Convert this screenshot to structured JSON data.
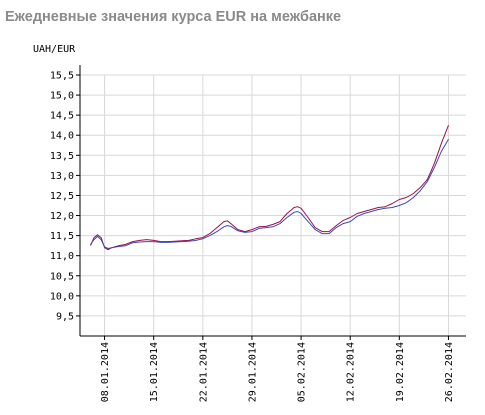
{
  "title": "Ежедневные значения курса EUR на межбанке",
  "chart_data": {
    "type": "line",
    "title": "Ежедневные значения курса EUR на межбанке",
    "ylabel": "UAH/EUR",
    "xlabel": "",
    "ylim": [
      9.0,
      15.5
    ],
    "yticks": [
      "9,5",
      "10,0",
      "10,5",
      "11,0",
      "11,5",
      "12,0",
      "12,5",
      "13,0",
      "13,5",
      "14,0",
      "14,5",
      "15,0",
      "15,5"
    ],
    "xticks": [
      {
        "label": "08.01.2014",
        "day": 8
      },
      {
        "label": "15.01.2014",
        "day": 15
      },
      {
        "label": "22.01.2014",
        "day": 22
      },
      {
        "label": "29.01.2014",
        "day": 29
      },
      {
        "label": "05.02.2014",
        "day": 36
      },
      {
        "label": "12.02.2014",
        "day": 43
      },
      {
        "label": "19.02.2014",
        "day": 50
      },
      {
        "label": "26.02.2014",
        "day": 57
      }
    ],
    "grid": true,
    "colors": {
      "series_1": "#9a1050",
      "series_2": "#3b49b0",
      "grid": "#d8d8d8"
    },
    "series": [
      {
        "points": [
          [
            6.0,
            11.25
          ],
          [
            6.5,
            11.45
          ],
          [
            7.0,
            11.52
          ],
          [
            7.5,
            11.45
          ],
          [
            8.0,
            11.2
          ],
          [
            8.5,
            11.15
          ],
          [
            9.0,
            11.2
          ],
          [
            10.0,
            11.25
          ],
          [
            11.0,
            11.28
          ],
          [
            12.0,
            11.35
          ],
          [
            13.0,
            11.38
          ],
          [
            14.0,
            11.4
          ],
          [
            15.0,
            11.38
          ],
          [
            16.0,
            11.35
          ],
          [
            17.0,
            11.35
          ],
          [
            18.0,
            11.36
          ],
          [
            19.0,
            11.37
          ],
          [
            20.0,
            11.38
          ],
          [
            21.0,
            11.42
          ],
          [
            22.0,
            11.45
          ],
          [
            23.0,
            11.55
          ],
          [
            24.0,
            11.7
          ],
          [
            25.0,
            11.85
          ],
          [
            25.5,
            11.87
          ],
          [
            26.0,
            11.8
          ],
          [
            27.0,
            11.65
          ],
          [
            28.0,
            11.6
          ],
          [
            29.0,
            11.65
          ],
          [
            30.0,
            11.72
          ],
          [
            31.0,
            11.73
          ],
          [
            32.0,
            11.78
          ],
          [
            33.0,
            11.85
          ],
          [
            34.0,
            12.05
          ],
          [
            35.0,
            12.2
          ],
          [
            35.5,
            12.22
          ],
          [
            36.0,
            12.18
          ],
          [
            37.0,
            11.95
          ],
          [
            38.0,
            11.7
          ],
          [
            39.0,
            11.6
          ],
          [
            40.0,
            11.6
          ],
          [
            41.0,
            11.75
          ],
          [
            42.0,
            11.88
          ],
          [
            43.0,
            11.95
          ],
          [
            44.0,
            12.05
          ],
          [
            45.0,
            12.1
          ],
          [
            46.0,
            12.15
          ],
          [
            47.0,
            12.2
          ],
          [
            48.0,
            12.22
          ],
          [
            49.0,
            12.3
          ],
          [
            50.0,
            12.4
          ],
          [
            51.0,
            12.45
          ],
          [
            52.0,
            12.55
          ],
          [
            53.0,
            12.7
          ],
          [
            54.0,
            12.9
          ],
          [
            55.0,
            13.3
          ],
          [
            56.0,
            13.8
          ],
          [
            57.0,
            14.25
          ]
        ]
      },
      {
        "points": [
          [
            6.0,
            11.28
          ],
          [
            6.5,
            11.4
          ],
          [
            7.0,
            11.48
          ],
          [
            7.5,
            11.4
          ],
          [
            8.0,
            11.22
          ],
          [
            8.5,
            11.18
          ],
          [
            9.0,
            11.2
          ],
          [
            10.0,
            11.23
          ],
          [
            11.0,
            11.25
          ],
          [
            12.0,
            11.32
          ],
          [
            13.0,
            11.34
          ],
          [
            14.0,
            11.35
          ],
          [
            15.0,
            11.35
          ],
          [
            16.0,
            11.33
          ],
          [
            17.0,
            11.33
          ],
          [
            18.0,
            11.34
          ],
          [
            19.0,
            11.35
          ],
          [
            20.0,
            11.36
          ],
          [
            21.0,
            11.38
          ],
          [
            22.0,
            11.42
          ],
          [
            23.0,
            11.5
          ],
          [
            24.0,
            11.6
          ],
          [
            25.0,
            11.72
          ],
          [
            25.5,
            11.75
          ],
          [
            26.0,
            11.73
          ],
          [
            27.0,
            11.62
          ],
          [
            28.0,
            11.58
          ],
          [
            29.0,
            11.6
          ],
          [
            30.0,
            11.68
          ],
          [
            31.0,
            11.7
          ],
          [
            32.0,
            11.72
          ],
          [
            33.0,
            11.8
          ],
          [
            34.0,
            11.95
          ],
          [
            35.0,
            12.08
          ],
          [
            35.5,
            12.1
          ],
          [
            36.0,
            12.05
          ],
          [
            37.0,
            11.85
          ],
          [
            38.0,
            11.65
          ],
          [
            39.0,
            11.55
          ],
          [
            40.0,
            11.55
          ],
          [
            41.0,
            11.7
          ],
          [
            42.0,
            11.8
          ],
          [
            43.0,
            11.85
          ],
          [
            44.0,
            11.98
          ],
          [
            45.0,
            12.05
          ],
          [
            46.0,
            12.1
          ],
          [
            47.0,
            12.15
          ],
          [
            48.0,
            12.18
          ],
          [
            49.0,
            12.2
          ],
          [
            50.0,
            12.25
          ],
          [
            51.0,
            12.32
          ],
          [
            52.0,
            12.45
          ],
          [
            53.0,
            12.62
          ],
          [
            54.0,
            12.85
          ],
          [
            55.0,
            13.2
          ],
          [
            56.0,
            13.6
          ],
          [
            57.0,
            13.9
          ]
        ]
      }
    ]
  }
}
